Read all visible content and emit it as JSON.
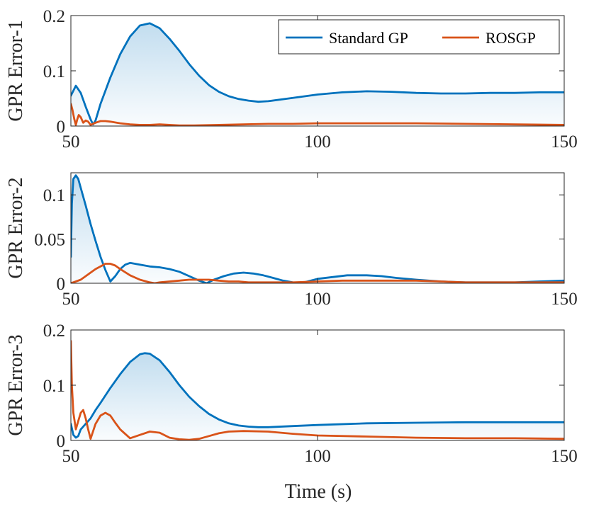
{
  "chart_data": [
    {
      "type": "line",
      "ylabel": "GPR Error-1",
      "xlim": [
        50,
        150
      ],
      "ylim": [
        0,
        0.2
      ],
      "xticks": [
        50,
        100,
        150
      ],
      "xtick_labels": [
        "50",
        "100",
        "150"
      ],
      "yticks": [
        0,
        0.1,
        0.2
      ],
      "ytick_labels": [
        "0",
        "0.1",
        "0.2"
      ],
      "legend": {
        "position": "top-right",
        "entries": [
          "Standard GP",
          "ROSGP"
        ]
      },
      "series": [
        {
          "name": "Standard GP",
          "color": "#0072BD",
          "fill": true,
          "x": [
            50,
            51,
            52,
            53,
            54,
            54.5,
            55,
            56,
            58,
            60,
            62,
            64,
            66,
            68,
            70,
            72,
            74,
            76,
            78,
            80,
            82,
            84,
            86,
            88,
            90,
            95,
            100,
            105,
            110,
            115,
            120,
            125,
            130,
            135,
            140,
            145,
            150
          ],
          "y": [
            0.055,
            0.073,
            0.06,
            0.035,
            0.012,
            0.003,
            0.01,
            0.04,
            0.088,
            0.13,
            0.162,
            0.182,
            0.186,
            0.177,
            0.158,
            0.136,
            0.112,
            0.091,
            0.074,
            0.062,
            0.054,
            0.049,
            0.046,
            0.044,
            0.045,
            0.051,
            0.057,
            0.061,
            0.063,
            0.062,
            0.06,
            0.059,
            0.059,
            0.06,
            0.06,
            0.061,
            0.061
          ]
        },
        {
          "name": "ROSGP",
          "color": "#D95319",
          "fill": false,
          "x": [
            50,
            50.3,
            50.7,
            51,
            51.3,
            51.6,
            52,
            52.5,
            53,
            53.5,
            54,
            55,
            56,
            57,
            58,
            60,
            62,
            64,
            66,
            68,
            70,
            72,
            75,
            80,
            85,
            90,
            95,
            100,
            110,
            120,
            130,
            140,
            150
          ],
          "y": [
            0.04,
            0.03,
            0.012,
            0.002,
            0.012,
            0.02,
            0.016,
            0.006,
            0.01,
            0.008,
            0.002,
            0.006,
            0.009,
            0.009,
            0.008,
            0.005,
            0.003,
            0.002,
            0.002,
            0.003,
            0.002,
            0.001,
            0.001,
            0.002,
            0.003,
            0.004,
            0.004,
            0.005,
            0.005,
            0.005,
            0.004,
            0.003,
            0.002
          ]
        }
      ]
    },
    {
      "type": "line",
      "ylabel": "GPR Error-2",
      "xlim": [
        50,
        150
      ],
      "ylim": [
        0,
        0.125
      ],
      "xticks": [
        50,
        100,
        150
      ],
      "xtick_labels": [
        "50",
        "100",
        "150"
      ],
      "yticks": [
        0,
        0.05,
        0.1
      ],
      "ytick_labels": [
        "0",
        "0.05",
        "0.1"
      ],
      "series": [
        {
          "name": "Standard GP",
          "color": "#0072BD",
          "fill": true,
          "x": [
            50,
            50.2,
            50.5,
            51,
            51.5,
            52,
            53,
            54,
            55,
            56,
            57,
            58,
            59,
            60,
            61,
            62,
            64,
            66,
            68,
            70,
            72,
            74,
            76,
            77.5,
            79,
            81,
            83,
            85,
            87,
            89,
            91,
            93,
            95,
            96.5,
            98,
            100,
            103,
            106,
            108,
            110,
            113,
            116,
            120,
            125,
            130,
            135,
            140,
            145,
            150
          ],
          "y": [
            0.03,
            0.09,
            0.118,
            0.122,
            0.118,
            0.108,
            0.088,
            0.067,
            0.048,
            0.03,
            0.015,
            0.002,
            0.008,
            0.016,
            0.021,
            0.023,
            0.021,
            0.019,
            0.018,
            0.016,
            0.013,
            0.008,
            0.003,
            0.0,
            0.004,
            0.008,
            0.011,
            0.012,
            0.011,
            0.009,
            0.006,
            0.003,
            0.001,
            0.0,
            0.002,
            0.005,
            0.007,
            0.009,
            0.009,
            0.009,
            0.008,
            0.006,
            0.004,
            0.002,
            0.001,
            0.001,
            0.001,
            0.002,
            0.003
          ]
        },
        {
          "name": "ROSGP",
          "color": "#D95319",
          "fill": false,
          "x": [
            50,
            51,
            52,
            53,
            54,
            55,
            56,
            57,
            58,
            59,
            60,
            62,
            64,
            66,
            67,
            68,
            70,
            72,
            74,
            76,
            78,
            80,
            82,
            84,
            86,
            88,
            90,
            95,
            100,
            105,
            110,
            115,
            120,
            125,
            130,
            135,
            140,
            145,
            150
          ],
          "y": [
            0.0,
            0.002,
            0.004,
            0.008,
            0.012,
            0.016,
            0.019,
            0.022,
            0.022,
            0.02,
            0.016,
            0.009,
            0.004,
            0.001,
            0.0,
            0.001,
            0.002,
            0.003,
            0.004,
            0.004,
            0.004,
            0.003,
            0.002,
            0.002,
            0.001,
            0.001,
            0.001,
            0.001,
            0.002,
            0.003,
            0.003,
            0.003,
            0.003,
            0.002,
            0.001,
            0.001,
            0.001,
            0.001,
            0.001
          ]
        }
      ]
    },
    {
      "type": "line",
      "ylabel": "GPR Error-3",
      "xlabel": "Time (s)",
      "xlim": [
        50,
        150
      ],
      "ylim": [
        0,
        0.2
      ],
      "xticks": [
        50,
        100,
        150
      ],
      "xtick_labels": [
        "50",
        "100",
        "150"
      ],
      "yticks": [
        0,
        0.1,
        0.2
      ],
      "ytick_labels": [
        "0",
        "0.1",
        "0.2"
      ],
      "series": [
        {
          "name": "Standard GP",
          "color": "#0072BD",
          "fill": true,
          "x": [
            50,
            50.5,
            51,
            51.5,
            52,
            52.5,
            53,
            54,
            55,
            56,
            58,
            60,
            62,
            64,
            65,
            66,
            68,
            70,
            72,
            74,
            76,
            78,
            80,
            82,
            84,
            86,
            88,
            90,
            95,
            100,
            110,
            120,
            130,
            140,
            150
          ],
          "y": [
            0.03,
            0.01,
            0.005,
            0.008,
            0.02,
            0.025,
            0.03,
            0.04,
            0.055,
            0.068,
            0.095,
            0.12,
            0.142,
            0.156,
            0.158,
            0.157,
            0.145,
            0.124,
            0.1,
            0.079,
            0.062,
            0.048,
            0.038,
            0.031,
            0.027,
            0.025,
            0.024,
            0.024,
            0.026,
            0.028,
            0.031,
            0.032,
            0.033,
            0.033,
            0.033
          ]
        },
        {
          "name": "ROSGP",
          "color": "#D95319",
          "fill": false,
          "x": [
            50,
            50.2,
            50.5,
            51,
            51.5,
            52,
            52.5,
            53,
            53.5,
            54,
            55,
            56,
            57,
            58,
            59,
            60,
            62,
            64,
            66,
            68,
            70,
            72,
            74,
            76,
            78,
            80,
            82,
            85,
            90,
            95,
            100,
            110,
            120,
            130,
            140,
            150
          ],
          "y": [
            0.18,
            0.1,
            0.05,
            0.02,
            0.035,
            0.05,
            0.055,
            0.04,
            0.02,
            0.003,
            0.03,
            0.045,
            0.05,
            0.045,
            0.032,
            0.02,
            0.004,
            0.01,
            0.016,
            0.014,
            0.005,
            0.002,
            0.001,
            0.003,
            0.008,
            0.013,
            0.016,
            0.017,
            0.016,
            0.012,
            0.009,
            0.007,
            0.005,
            0.004,
            0.004,
            0.003
          ]
        }
      ]
    }
  ]
}
